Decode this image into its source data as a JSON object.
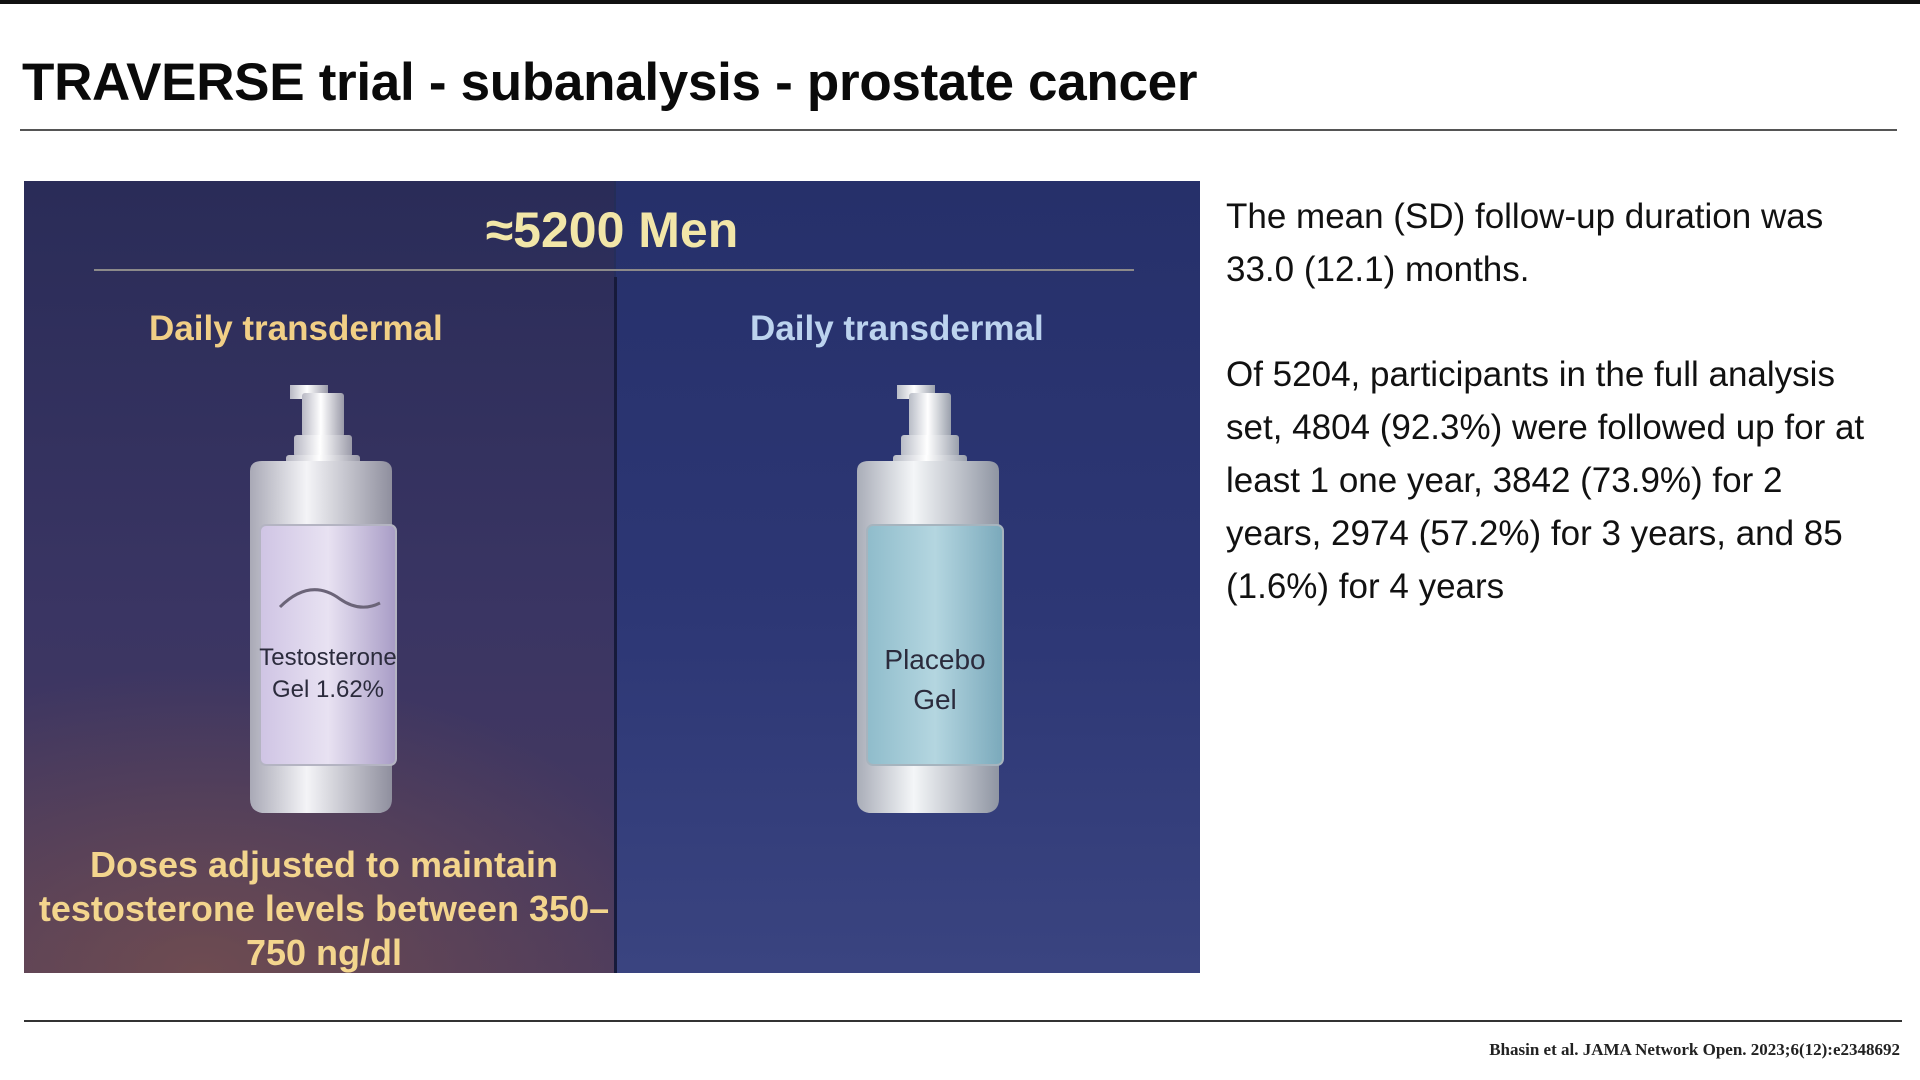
{
  "slide": {
    "title": "TRAVERSE trial - subanalysis - prostate cancer",
    "citation": "Bhasin et al. JAMA Network Open. 2023;6(12):e2348692"
  },
  "figure": {
    "participants": "≈5200 Men",
    "left_arm": {
      "route": "Daily transdermal",
      "label_line1": "Testosterone",
      "label_line2": "Gel 1.62%",
      "note": "Doses adjusted to maintain testosterone levels between 350–750 ng/dl"
    },
    "right_arm": {
      "route": "Daily transdermal",
      "label_line1": "Placebo",
      "label_line2": "Gel"
    }
  },
  "text": {
    "paragraph1": "The mean (SD) follow-up duration was 33.0 (12.1) months.",
    "paragraph2": "Of 5204, participants in the full analysis set, 4804 (92.3%) were followed up for at least 1 one year, 3842 (73.9%) for 2 years, 2974 (57.2%) for 3 years, and 85 (1.6%) for 4 years"
  },
  "colors": {
    "left_label_accent": "#f1cf86",
    "right_label_accent": "#bcd3ee",
    "panel_background": "#2a3266"
  }
}
